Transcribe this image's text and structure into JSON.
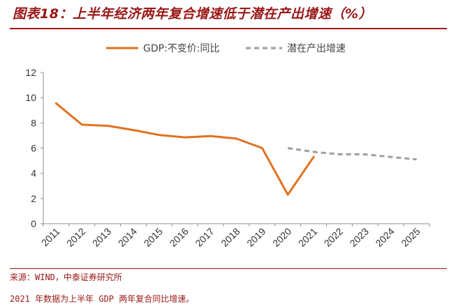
{
  "header": {
    "title": "图表18：上半年经济两年复合增速低于潜在产出增速（%）"
  },
  "footer": {
    "source": "来源：WIND，中泰证券研究所",
    "note": "2021 年数据为上半年 GDP 两年复合同比增速。"
  },
  "chart_data": {
    "type": "line",
    "title": "",
    "xlabel": "",
    "ylabel": "",
    "categories": [
      "2011",
      "2012",
      "2013",
      "2014",
      "2015",
      "2016",
      "2017",
      "2018",
      "2019",
      "2020",
      "2021",
      "2022",
      "2023",
      "2024",
      "2025"
    ],
    "ylim": [
      0,
      12
    ],
    "yticks": [
      0,
      2,
      4,
      6,
      8,
      10,
      12
    ],
    "grid": false,
    "legend_position": "top",
    "series": [
      {
        "name": "GDP:不变价:同比",
        "color": "#e3711e",
        "style": "solid",
        "x": [
          "2011",
          "2012",
          "2013",
          "2014",
          "2015",
          "2016",
          "2017",
          "2018",
          "2019",
          "2020",
          "2021"
        ],
        "values": [
          9.55,
          7.86,
          7.77,
          7.43,
          7.04,
          6.85,
          6.95,
          6.75,
          6.0,
          2.3,
          5.3
        ]
      },
      {
        "name": "潜在产出增速",
        "color": "#9e9e9e",
        "style": "dashed",
        "x": [
          "2020",
          "2021",
          "2022",
          "2023",
          "2024",
          "2025"
        ],
        "values": [
          6.0,
          5.7,
          5.5,
          5.5,
          5.3,
          5.1
        ]
      }
    ]
  }
}
